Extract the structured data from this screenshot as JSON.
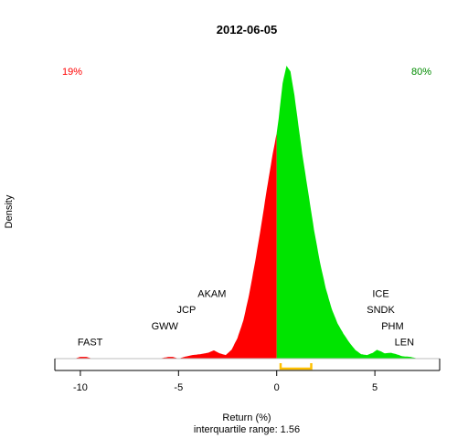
{
  "chart_data": {
    "type": "area",
    "title": "2012-06-05",
    "xlabel": "Return (%)",
    "ylabel": "Density",
    "subtitle": "interquartile range: 1.56",
    "xlim": [
      -11.3,
      8.3
    ],
    "ylim": [
      0,
      1
    ],
    "x_ticks": [
      -10,
      -5,
      0,
      5
    ],
    "x_tick_labels": [
      "-10",
      "-5",
      "0",
      "5"
    ],
    "split_at": 0,
    "left_share": "19%",
    "right_share": "80%",
    "colors": {
      "negative": "#ff0000",
      "positive": "#00e400",
      "baseline": "#bebebe",
      "iqr": "#ffc000",
      "title": "#000000"
    },
    "iqr": [
      0.2,
      1.76
    ],
    "density": {
      "x": [
        -10.3,
        -10.0,
        -9.7,
        -9.4,
        -6.0,
        -5.5,
        -5.3,
        -5.0,
        -4.7,
        -4.3,
        -3.9,
        -3.5,
        -3.2,
        -2.9,
        -2.6,
        -2.3,
        -2.0,
        -1.7,
        -1.4,
        -1.1,
        -0.8,
        -0.5,
        -0.2,
        0.0,
        0.1,
        0.3,
        0.5,
        0.7,
        0.9,
        1.1,
        1.3,
        1.6,
        1.9,
        2.2,
        2.5,
        2.8,
        3.1,
        3.4,
        3.7,
        4.0,
        4.3,
        4.6,
        4.9,
        5.1,
        5.3,
        5.5,
        5.8,
        6.1,
        6.4,
        6.8,
        7.2
      ],
      "y": [
        0.0,
        0.006,
        0.006,
        0.0,
        0.0,
        0.006,
        0.006,
        0.0,
        0.006,
        0.012,
        0.015,
        0.02,
        0.028,
        0.018,
        0.012,
        0.03,
        0.07,
        0.13,
        0.22,
        0.33,
        0.45,
        0.58,
        0.7,
        0.77,
        0.82,
        0.94,
        1.0,
        0.98,
        0.9,
        0.8,
        0.7,
        0.57,
        0.44,
        0.33,
        0.24,
        0.17,
        0.12,
        0.085,
        0.055,
        0.03,
        0.015,
        0.012,
        0.02,
        0.03,
        0.025,
        0.018,
        0.02,
        0.015,
        0.008,
        0.006,
        0.0
      ]
    },
    "annotations": [
      {
        "label": "FAST",
        "x": -9.5,
        "y": 0.045
      },
      {
        "label": "GWW",
        "x": -5.7,
        "y": 0.1
      },
      {
        "label": "JCP",
        "x": -4.6,
        "y": 0.155
      },
      {
        "label": "AKAM",
        "x": -3.3,
        "y": 0.21
      },
      {
        "label": "ICE",
        "x": 5.3,
        "y": 0.21
      },
      {
        "label": "SNDK",
        "x": 5.3,
        "y": 0.155
      },
      {
        "label": "PHM",
        "x": 5.9,
        "y": 0.1
      },
      {
        "label": "LEN",
        "x": 6.5,
        "y": 0.045
      }
    ],
    "grid": false
  }
}
